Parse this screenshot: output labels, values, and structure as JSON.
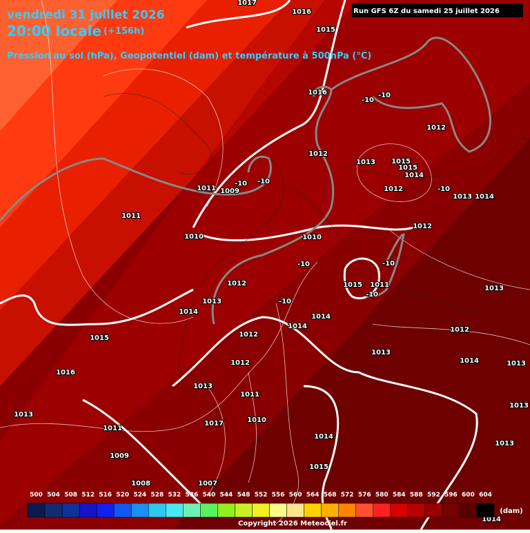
{
  "header": {
    "date": "vendredi 31 juillet 2026",
    "time": "20:00 locale",
    "offset": "(+156h)",
    "subtitle": "Pression au sol (hPa), Geopotentiel (dam) et température à 500hPa (°C)",
    "run": "Run GFS 6Z du samedi 25 juillet 2026"
  },
  "labels": [
    "1017",
    "1016",
    "1015",
    "1016",
    "-10",
    "-10",
    "1012",
    "1012",
    "1013",
    "1015",
    "1015",
    "1014",
    "1012",
    "-10",
    "1013",
    "1014",
    "1011",
    "1009",
    "-10",
    "-10",
    "1011",
    "1010",
    "1010",
    "1012",
    "-10",
    "-10",
    "1015",
    "1011",
    "-10",
    "1012",
    "1013",
    "-10",
    "1013",
    "1014",
    "1014",
    "1014",
    "1012",
    "1015",
    "1012",
    "1013",
    "1012",
    "1014",
    "1013",
    "1016",
    "1013",
    "1011",
    "1013",
    "1013",
    "1010",
    "1011",
    "1017",
    "1014",
    "1013",
    "1009",
    "1015",
    "1008",
    "1007",
    "1014"
  ],
  "legend": {
    "unit": "(dam)",
    "levels": [
      "500",
      "504",
      "508",
      "512",
      "516",
      "520",
      "524",
      "528",
      "532",
      "536",
      "540",
      "544",
      "548",
      "552",
      "556",
      "560",
      "564",
      "568",
      "572",
      "576",
      "580",
      "584",
      "588",
      "592",
      "596",
      "600",
      "604"
    ],
    "colors": [
      "#0b1a4a",
      "#132c70",
      "#10309a",
      "#1414c8",
      "#1020f0",
      "#1456f0",
      "#1a90f0",
      "#2cc8f0",
      "#48e8f0",
      "#70f0b8",
      "#5cf060",
      "#90f020",
      "#c8f020",
      "#f0f020",
      "#fcfc88",
      "#ffe490",
      "#ffd000",
      "#ffb000",
      "#ff8400",
      "#ff5030",
      "#ff2020",
      "#d80000",
      "#b80000",
      "#980000",
      "#780000",
      "#580000",
      "#000000"
    ]
  },
  "footer": {
    "copyright": "Copyright 2026 Meteociel.fr"
  }
}
